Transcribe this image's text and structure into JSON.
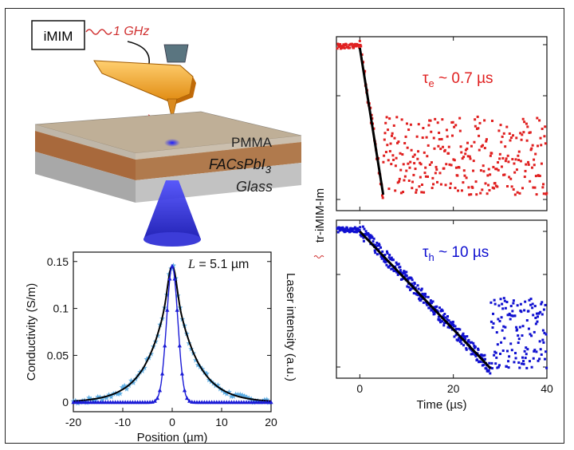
{
  "schematic": {
    "instrument_label": "iMIM",
    "frequency_label": "1 GHz",
    "layers": [
      {
        "label": "PMMA",
        "color": "#c9b9a0"
      },
      {
        "label": "FACsPbI",
        "subscript": "3",
        "color": "#b07a4d"
      },
      {
        "label": "Glass",
        "color": "#c4c4c4"
      }
    ],
    "laser_color": "#2b2bd6",
    "probe_color": "#f0a020"
  },
  "chart_data": [
    {
      "type": "line",
      "xlabel": "Position (µm)",
      "ylabel": "Conductivity (S/m)",
      "ylabel_right": "Laser intensity (a.u.)",
      "annotation": "L = 5.1 µm",
      "annotation_italic": "L",
      "annotation_rest": " = 5.1 µm",
      "xlim": [
        -20,
        20
      ],
      "ylim": [
        -0.01,
        0.16
      ],
      "xticks": [
        "-20",
        "-10",
        "0",
        "10",
        "20"
      ],
      "yticks": [
        "0",
        "0.05",
        "0.1",
        "0.15"
      ],
      "series": [
        {
          "color": "#4aa3e0",
          "marker": "star",
          "peak": 0.145,
          "width": 5.1
        },
        {
          "color": "#000000",
          "marker": "none",
          "peak": 0.145,
          "width": 5.1
        },
        {
          "color": "#1a1ad6",
          "marker": "triangle",
          "peak": 0.145,
          "width": 1.6
        }
      ]
    },
    {
      "type": "scatter",
      "annotation": "τe ~ 0.7 µs",
      "annotation_symbol": "τ",
      "annotation_sub": "e",
      "annotation_rest": " ~ 0.7 µs",
      "color": "#e02020",
      "xlim": [
        -5,
        40
      ],
      "ylog": true,
      "decay_time_us": 0.7,
      "fit_x": [
        0,
        5
      ]
    },
    {
      "type": "scatter",
      "annotation": "τh ~ 10 µs",
      "annotation_symbol": "τ",
      "annotation_sub": "h",
      "annotation_rest": " ~ 10 µs",
      "color": "#1010d0",
      "xlim": [
        -5,
        40
      ],
      "ylog": true,
      "decay_time_us": 10,
      "fit_x": [
        0,
        28
      ],
      "xlabel": "Time (µs)",
      "ylabel": "tr-iMIM-Im",
      "xticks": [
        "0",
        "20",
        "40"
      ]
    }
  ]
}
